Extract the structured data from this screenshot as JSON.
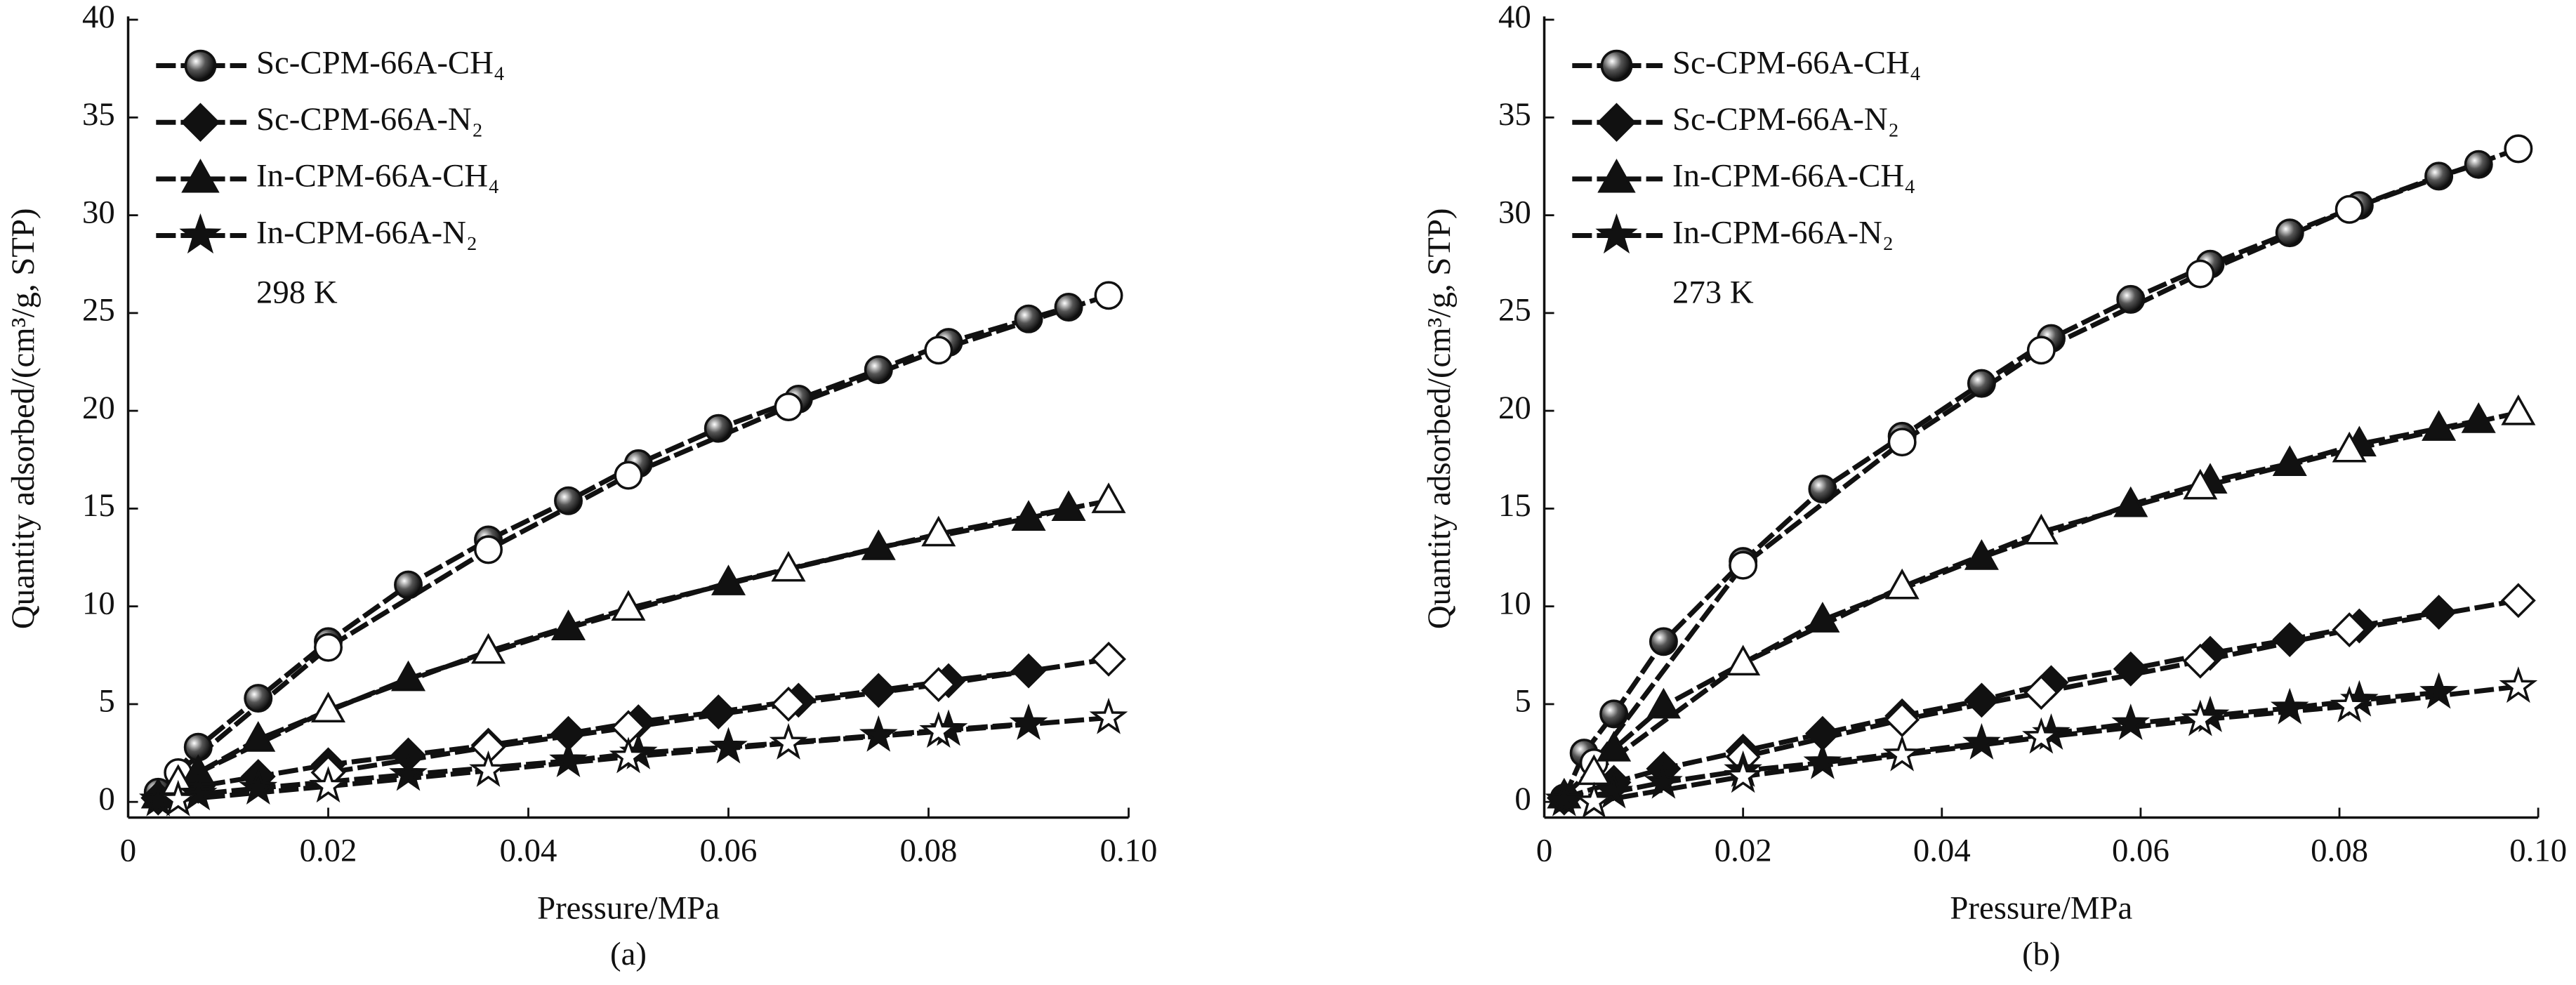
{
  "chart_data": [
    {
      "type": "line",
      "subcaption": "(a)",
      "annotation": "298 K",
      "x_label": "Pressure/MPa",
      "y_label": "Quantity adsorbed/(cm³/g, STP)",
      "xlim": [
        0,
        0.1
      ],
      "ylim": [
        -0.8,
        40
      ],
      "xticks": [
        0,
        0.02,
        0.04,
        0.06,
        0.08,
        {
          "value": 0.1,
          "label": "0.10"
        }
      ],
      "yticks": [
        0,
        5,
        10,
        15,
        20,
        25,
        30,
        35,
        40
      ],
      "series": [
        {
          "name": "Sc-CPM-66A-CH₄",
          "color": "#111111",
          "marker": "circle",
          "x": [
            0.003,
            0.007,
            0.013,
            0.02,
            0.028,
            0.036,
            0.044,
            0.051,
            0.059,
            0.067,
            0.075,
            0.082,
            0.09,
            0.094
          ],
          "values": [
            0.5,
            2.8,
            5.3,
            8.2,
            11.1,
            13.4,
            15.4,
            17.3,
            19.1,
            20.6,
            22.1,
            23.5,
            24.7,
            25.3
          ],
          "desorption_x": [
            0.098,
            0.081,
            0.066,
            0.05,
            0.036,
            0.02,
            0.005
          ],
          "desorption_values": [
            25.9,
            23.1,
            20.2,
            16.7,
            12.9,
            7.9,
            1.5
          ]
        },
        {
          "name": "Sc-CPM-66A-N₂",
          "color": "#111111",
          "marker": "diamond",
          "x": [
            0.003,
            0.007,
            0.013,
            0.02,
            0.028,
            0.036,
            0.044,
            0.051,
            0.059,
            0.067,
            0.075,
            0.082,
            0.09
          ],
          "values": [
            0.2,
            0.8,
            1.3,
            1.9,
            2.4,
            2.9,
            3.5,
            4.1,
            4.6,
            5.2,
            5.7,
            6.2,
            6.7
          ],
          "desorption_x": [
            0.098,
            0.081,
            0.066,
            0.05,
            0.036,
            0.02
          ],
          "desorption_values": [
            7.3,
            6.0,
            5.0,
            3.8,
            2.8,
            1.5
          ]
        },
        {
          "name": "In-CPM-66A-CH₄",
          "color": "#111111",
          "marker": "triangle",
          "x": [
            0.003,
            0.007,
            0.013,
            0.028,
            0.044,
            0.06,
            0.075,
            0.09,
            0.094
          ],
          "values": [
            0.3,
            1.5,
            3.2,
            6.3,
            8.9,
            11.2,
            13.0,
            14.5,
            15.0
          ],
          "desorption_x": [
            0.098,
            0.081,
            0.066,
            0.05,
            0.036,
            0.02,
            0.005
          ],
          "desorption_values": [
            15.4,
            13.7,
            11.9,
            9.9,
            7.7,
            4.7,
            1.0
          ]
        },
        {
          "name": "In-CPM-66A-N₂",
          "color": "#111111",
          "marker": "star",
          "x": [
            0.003,
            0.007,
            0.013,
            0.028,
            0.044,
            0.051,
            0.06,
            0.075,
            0.082,
            0.09
          ],
          "values": [
            0.1,
            0.4,
            0.7,
            1.4,
            2.1,
            2.5,
            2.8,
            3.4,
            3.7,
            4.0
          ],
          "desorption_x": [
            0.098,
            0.081,
            0.066,
            0.05,
            0.036,
            0.02,
            0.005
          ],
          "desorption_values": [
            4.3,
            3.6,
            3.0,
            2.3,
            1.6,
            0.8,
            0.1
          ]
        }
      ]
    },
    {
      "type": "line",
      "subcaption": "(b)",
      "annotation": "273 K",
      "x_label": "Pressure/MPa",
      "y_label": "Quantity adsorbed/(cm³/g, STP)",
      "xlim": [
        0,
        0.1
      ],
      "ylim": [
        -0.8,
        40
      ],
      "xticks": [
        0,
        0.02,
        0.04,
        0.06,
        0.08,
        {
          "value": 0.1,
          "label": "0.10"
        }
      ],
      "yticks": [
        0,
        5,
        10,
        15,
        20,
        25,
        30,
        35,
        40
      ],
      "series": [
        {
          "name": "Sc-CPM-66A-CH₄",
          "color": "#111111",
          "marker": "circle",
          "x": [
            0.002,
            0.004,
            0.007,
            0.012,
            0.02,
            0.028,
            0.036,
            0.044,
            0.051,
            0.059,
            0.067,
            0.075,
            0.082,
            0.09,
            0.094
          ],
          "values": [
            0.2,
            2.5,
            4.5,
            8.2,
            12.3,
            16.0,
            18.7,
            21.4,
            23.7,
            25.7,
            27.5,
            29.1,
            30.5,
            32.0,
            32.6
          ],
          "desorption_x": [
            0.098,
            0.081,
            0.066,
            0.05,
            0.036,
            0.02,
            0.005
          ],
          "desorption_values": [
            33.4,
            30.3,
            27.0,
            23.1,
            18.4,
            12.1,
            2.0
          ]
        },
        {
          "name": "Sc-CPM-66A-N₂",
          "color": "#111111",
          "marker": "diamond",
          "x": [
            0.002,
            0.007,
            0.012,
            0.02,
            0.028,
            0.036,
            0.044,
            0.051,
            0.059,
            0.067,
            0.075,
            0.082,
            0.09
          ],
          "values": [
            0.2,
            1.0,
            1.7,
            2.6,
            3.5,
            4.4,
            5.2,
            6.1,
            6.8,
            7.6,
            8.3,
            9.0,
            9.7
          ],
          "desorption_x": [
            0.098,
            0.081,
            0.066,
            0.05,
            0.036,
            0.02
          ],
          "desorption_values": [
            10.3,
            8.8,
            7.2,
            5.6,
            4.2,
            2.3
          ]
        },
        {
          "name": "In-CPM-66A-CH₄",
          "color": "#111111",
          "marker": "triangle",
          "x": [
            0.002,
            0.007,
            0.012,
            0.028,
            0.044,
            0.059,
            0.067,
            0.075,
            0.082,
            0.09,
            0.094
          ],
          "values": [
            0.3,
            2.7,
            4.9,
            9.3,
            12.5,
            15.2,
            16.4,
            17.3,
            18.3,
            19.1,
            19.5
          ],
          "desorption_x": [
            0.098,
            0.081,
            0.066,
            0.05,
            0.036,
            0.02,
            0.005
          ],
          "desorption_values": [
            19.9,
            18.0,
            16.1,
            13.8,
            11.0,
            7.1,
            1.5
          ]
        },
        {
          "name": "In-CPM-66A-N₂",
          "color": "#111111",
          "marker": "star",
          "x": [
            0.002,
            0.007,
            0.012,
            0.02,
            0.028,
            0.044,
            0.051,
            0.059,
            0.067,
            0.075,
            0.082,
            0.09
          ],
          "values": [
            0.1,
            0.5,
            1.0,
            1.6,
            2.0,
            3.0,
            3.5,
            4.0,
            4.4,
            4.8,
            5.2,
            5.6
          ],
          "desorption_x": [
            0.098,
            0.081,
            0.066,
            0.05,
            0.036,
            0.02,
            0.005
          ],
          "desorption_values": [
            5.9,
            4.9,
            4.2,
            3.3,
            2.4,
            1.3,
            0.0
          ]
        }
      ]
    }
  ]
}
